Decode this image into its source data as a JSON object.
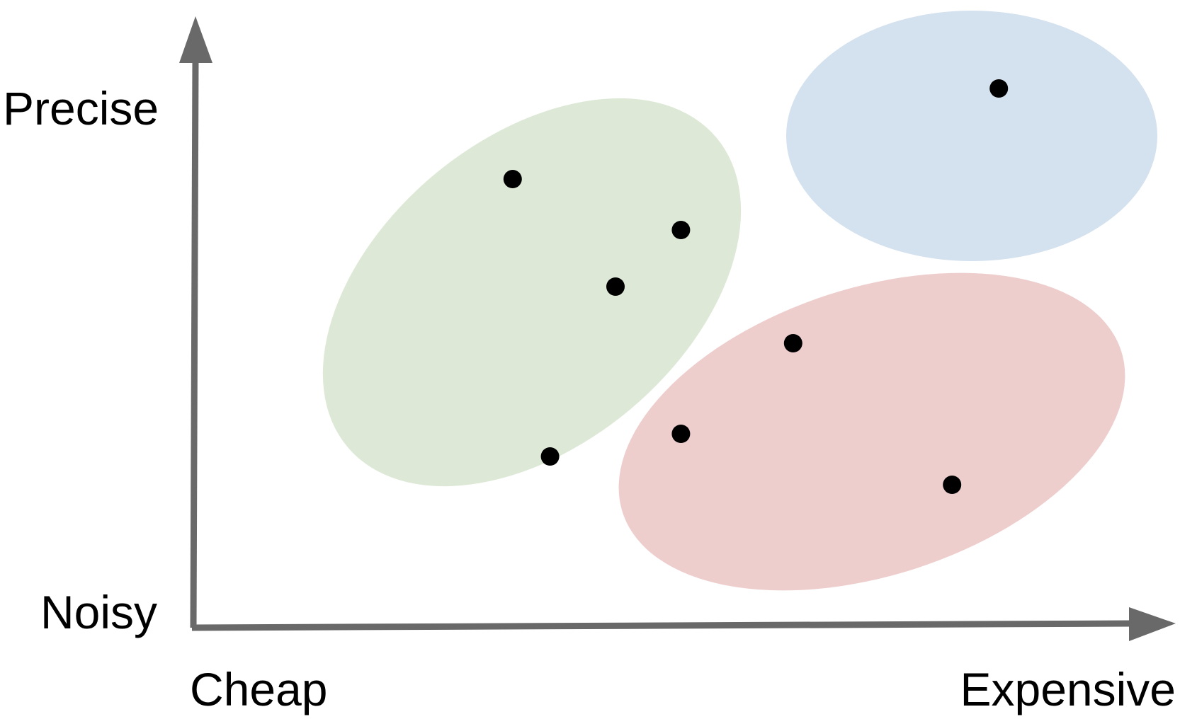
{
  "axes": {
    "x_low_label": "Cheap",
    "x_high_label": "Expensive",
    "y_high_label": "Precise",
    "y_low_label": "Noisy",
    "axis_color": "#696969"
  },
  "clusters": [
    {
      "id": "green",
      "fill": "#dde9d6",
      "points": [
        {
          "x": 0.38,
          "y": 0.3
        },
        {
          "x": 0.34,
          "y": 0.79
        },
        {
          "x": 0.45,
          "y": 0.6
        },
        {
          "x": 0.52,
          "y": 0.7
        }
      ]
    },
    {
      "id": "blue",
      "fill": "#d4e1ef",
      "points": [
        {
          "x": 0.86,
          "y": 0.95
        }
      ]
    },
    {
      "id": "red",
      "fill": "#eececd",
      "points": [
        {
          "x": 0.64,
          "y": 0.5
        },
        {
          "x": 0.52,
          "y": 0.34
        },
        {
          "x": 0.81,
          "y": 0.25
        }
      ]
    }
  ],
  "point_color": "#000000"
}
